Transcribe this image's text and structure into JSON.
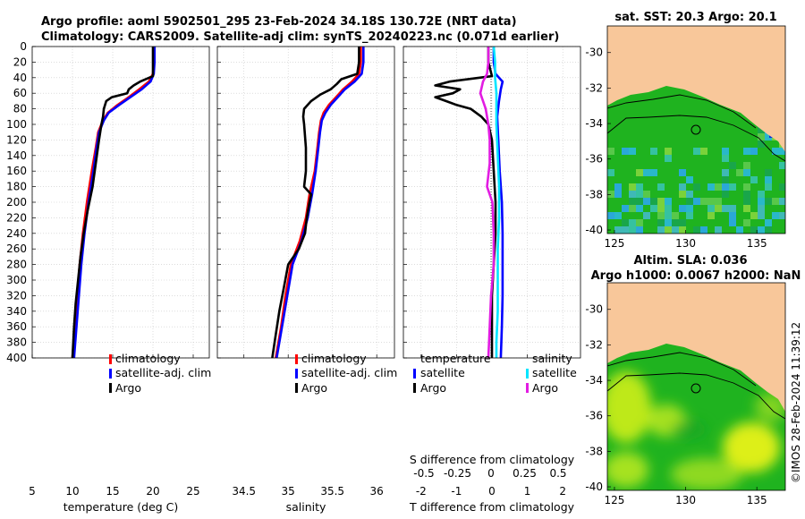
{
  "figure": {
    "title_line1": "Argo profile: aoml 5902501_295 23-Feb-2024 34.18S 130.72E (NRT data)",
    "title_line2": "Climatology: CARS2009. Satellite-adj clim: synTS_20240223.nc (0.071d earlier)",
    "credit": "©IMOS 28-Feb-2024 11:39:12",
    "colors": {
      "clim": "#ff0000",
      "sat": "#0000ff",
      "argo": "#000000",
      "cyan": "#00e5ff",
      "magenta": "#e21ce2",
      "sea": "#1fb31f",
      "land": "#f8c79a"
    }
  },
  "chart_data": [
    {
      "type": "line",
      "id": "temperature",
      "xlabel": "temperature (deg C)",
      "xlim": [
        5,
        27
      ],
      "ylim": [
        400,
        0
      ],
      "xticks": [
        "5",
        "10",
        "15",
        "20",
        "25"
      ],
      "yticks": [
        "0",
        "20",
        "40",
        "60",
        "80",
        "100",
        "120",
        "140",
        "160",
        "180",
        "200",
        "220",
        "240",
        "260",
        "280",
        "300",
        "320",
        "340",
        "360",
        "380",
        "400"
      ],
      "legend": [
        "climatology",
        "satellite-adj. clim",
        "Argo"
      ],
      "series": [
        {
          "name": "climatology",
          "depth": [
            0,
            20,
            35,
            45,
            55,
            65,
            75,
            85,
            95,
            110,
            130,
            160,
            200,
            240,
            280,
            320,
            360,
            400
          ],
          "values": [
            20.1,
            20.1,
            20.0,
            19.5,
            18.3,
            17.0,
            15.6,
            14.4,
            13.8,
            13.2,
            12.9,
            12.4,
            11.8,
            11.3,
            10.9,
            10.6,
            10.3,
            10.0
          ]
        },
        {
          "name": "satellite-adj. clim",
          "depth": [
            0,
            20,
            35,
            45,
            55,
            65,
            75,
            85,
            95,
            110,
            130,
            160,
            200,
            240,
            280,
            320,
            360,
            400
          ],
          "values": [
            20.2,
            20.2,
            20.1,
            19.7,
            18.6,
            17.2,
            15.8,
            14.5,
            13.9,
            13.3,
            13.0,
            12.6,
            12.0,
            11.5,
            11.1,
            10.8,
            10.5,
            10.2
          ]
        },
        {
          "name": "Argo",
          "depth": [
            0,
            20,
            38,
            45,
            50,
            55,
            60,
            65,
            70,
            80,
            90,
            100,
            120,
            150,
            180,
            210,
            240,
            270,
            300,
            330,
            360,
            400
          ],
          "values": [
            20.0,
            20.0,
            20.0,
            18.4,
            17.6,
            17.0,
            16.8,
            14.9,
            14.2,
            13.9,
            13.8,
            13.6,
            13.3,
            12.9,
            12.5,
            11.9,
            11.4,
            11.0,
            10.7,
            10.4,
            10.2,
            10.0
          ]
        }
      ]
    },
    {
      "type": "line",
      "id": "salinity",
      "xlabel": "salinity",
      "xlim": [
        34.2,
        36.2
      ],
      "ylim": [
        400,
        0
      ],
      "xticks": [
        "34.5",
        "35",
        "35.5",
        "36"
      ],
      "legend": [
        "climatology",
        "satellite-adj. clim",
        "Argo"
      ],
      "series": [
        {
          "name": "climatology",
          "depth": [
            0,
            20,
            35,
            45,
            55,
            65,
            75,
            85,
            95,
            110,
            130,
            160,
            190,
            220,
            250,
            280,
            320,
            360,
            400
          ],
          "values": [
            35.82,
            35.82,
            35.8,
            35.72,
            35.62,
            35.54,
            35.46,
            35.4,
            35.37,
            35.35,
            35.33,
            35.3,
            35.24,
            35.2,
            35.13,
            35.03,
            34.97,
            34.92,
            34.86
          ]
        },
        {
          "name": "satellite-adj. clim",
          "depth": [
            0,
            20,
            35,
            45,
            55,
            65,
            75,
            85,
            95,
            110,
            130,
            160,
            190,
            220,
            250,
            280,
            320,
            360,
            400
          ],
          "values": [
            35.85,
            35.85,
            35.83,
            35.75,
            35.64,
            35.56,
            35.48,
            35.42,
            35.38,
            35.36,
            35.34,
            35.31,
            35.27,
            35.22,
            35.15,
            35.05,
            34.99,
            34.93,
            34.87
          ]
        },
        {
          "name": "Argo",
          "depth": [
            0,
            20,
            35,
            42,
            48,
            55,
            62,
            70,
            80,
            90,
            100,
            130,
            160,
            180,
            190,
            200,
            220,
            240,
            260,
            280,
            310,
            340,
            370,
            400
          ],
          "values": [
            35.8,
            35.8,
            35.78,
            35.6,
            35.55,
            35.48,
            35.36,
            35.26,
            35.18,
            35.17,
            35.18,
            35.2,
            35.2,
            35.18,
            35.26,
            35.24,
            35.21,
            35.19,
            35.12,
            35.0,
            34.95,
            34.9,
            34.86,
            34.82
          ]
        }
      ]
    },
    {
      "type": "line",
      "id": "difference",
      "xlabel": "T difference from climatology",
      "xlabel_top": "S difference from climatology",
      "xlim": [
        -2.5,
        2.5
      ],
      "ylim": [
        400,
        0
      ],
      "xticks": [
        "-2",
        "-1",
        "0",
        "1",
        "2"
      ],
      "xticks_top": [
        "-0.5",
        "-0.25",
        "0",
        "0.25",
        "0.5"
      ],
      "legend_left_title": "temperature",
      "legend_left": [
        "satellite",
        "Argo"
      ],
      "legend_right_title": "salinity",
      "legend_right": [
        "satellite",
        "Argo"
      ],
      "series": [
        {
          "name": "T satellite",
          "depth": [
            0,
            20,
            35,
            45,
            55,
            70,
            90,
            120,
            160,
            200,
            240,
            280,
            320,
            360,
            400
          ],
          "values": [
            0.05,
            0.05,
            0.1,
            0.3,
            0.25,
            0.2,
            0.15,
            0.18,
            0.22,
            0.28,
            0.3,
            0.3,
            0.3,
            0.28,
            0.25
          ]
        },
        {
          "name": "T Argo",
          "depth": [
            0,
            20,
            38,
            45,
            50,
            55,
            60,
            65,
            70,
            75,
            80,
            90,
            100,
            120,
            160,
            200,
            240,
            280,
            320,
            360,
            400
          ],
          "values": [
            -0.1,
            -0.1,
            0.0,
            -1.2,
            -1.6,
            -0.9,
            -1.1,
            -1.6,
            -1.3,
            -1.0,
            -0.6,
            -0.3,
            -0.1,
            0.0,
            0.05,
            0.1,
            0.1,
            0.05,
            0.0,
            0.0,
            0.0
          ]
        },
        {
          "name": "S satellite",
          "depth": [
            0,
            20,
            40,
            60,
            80,
            100,
            140,
            180,
            220,
            260,
            300,
            340,
            380,
            400
          ],
          "values": [
            0.02,
            0.03,
            0.03,
            0.04,
            0.04,
            0.04,
            0.05,
            0.06,
            0.06,
            0.05,
            0.05,
            0.05,
            0.04,
            0.04
          ]
        },
        {
          "name": "S Argo",
          "depth": [
            0,
            20,
            35,
            45,
            60,
            80,
            100,
            120,
            150,
            180,
            200,
            240,
            280,
            320,
            360,
            400
          ],
          "values": [
            -0.02,
            -0.02,
            -0.03,
            -0.06,
            -0.08,
            -0.04,
            -0.02,
            -0.01,
            -0.01,
            -0.03,
            0.01,
            0.02,
            0.02,
            0.0,
            -0.01,
            -0.02
          ]
        }
      ]
    },
    {
      "type": "heatmap",
      "id": "sst-map",
      "title": "sat. SST: 20.3 Argo: 20.1",
      "xlim": [
        124.5,
        137
      ],
      "ylim": [
        -40.2,
        -28.5
      ],
      "xticks": [
        "125",
        "130",
        "135"
      ],
      "yticks": [
        "-30",
        "-32",
        "-34",
        "-36",
        "-38",
        "-40"
      ],
      "argo_position": {
        "lon": 130.72,
        "lat": -34.18
      }
    },
    {
      "type": "heatmap",
      "id": "sla-map",
      "title": "Altim. SLA: 0.036",
      "subtitle": "Argo h1000: 0.0067 h2000: NaN",
      "xlim": [
        124.5,
        137
      ],
      "ylim": [
        -40.2,
        -28.5
      ],
      "xticks": [
        "125",
        "130",
        "135"
      ],
      "yticks": [
        "-30",
        "-32",
        "-34",
        "-36",
        "-38",
        "-40"
      ],
      "argo_position": {
        "lon": 130.72,
        "lat": -34.18
      }
    }
  ]
}
